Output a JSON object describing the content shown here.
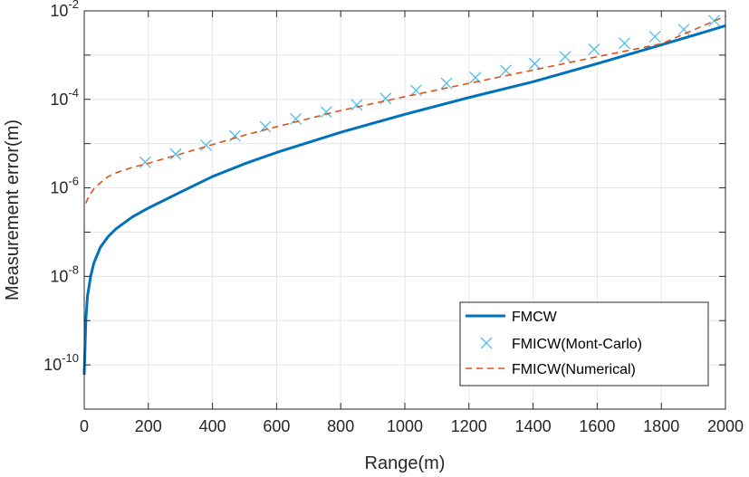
{
  "chart_data": {
    "type": "line",
    "xlabel": "Range(m)",
    "ylabel": "Measurement error(m)",
    "xlim": [
      0,
      2000
    ],
    "ylim_log10": [
      -11,
      -2
    ],
    "y_scale": "log",
    "grid": true,
    "legend_position": "bottom-right",
    "x_ticks": [
      {
        "value": 0,
        "label": "0"
      },
      {
        "value": 200,
        "label": "200"
      },
      {
        "value": 400,
        "label": "400"
      },
      {
        "value": 600,
        "label": "600"
      },
      {
        "value": 800,
        "label": "800"
      },
      {
        "value": 1000,
        "label": "1000"
      },
      {
        "value": 1200,
        "label": "1200"
      },
      {
        "value": 1400,
        "label": "1400"
      },
      {
        "value": 1600,
        "label": "1600"
      },
      {
        "value": 1800,
        "label": "1800"
      },
      {
        "value": 2000,
        "label": "2000"
      }
    ],
    "y_ticks": [
      {
        "exp": -10,
        "base": "10",
        "sup": "-10"
      },
      {
        "exp": -8,
        "base": "10",
        "sup": "-8"
      },
      {
        "exp": -6,
        "base": "10",
        "sup": "-6"
      },
      {
        "exp": -4,
        "base": "10",
        "sup": "-4"
      },
      {
        "exp": -2,
        "base": "10",
        "sup": "-2"
      }
    ],
    "series": [
      {
        "name": "FMCW",
        "style": "solid",
        "color": "#0072BD",
        "x": [
          0,
          5,
          10,
          20,
          30,
          50,
          75,
          100,
          150,
          200,
          300,
          400,
          500,
          600,
          800,
          1000,
          1200,
          1400,
          1600,
          1800,
          2000
        ],
        "y": [
          6e-11,
          1e-09,
          3.5e-09,
          1e-08,
          2e-08,
          4.5e-08,
          8e-08,
          1.2e-07,
          2.2e-07,
          3.5e-07,
          8e-07,
          1.8e-06,
          3.5e-06,
          6.3e-06,
          1.8e-05,
          4.6e-05,
          0.00011,
          0.00025,
          0.00064,
          0.0017,
          0.0046
        ]
      },
      {
        "name": "FMICW(Mont-Carlo)",
        "style": "marker-x",
        "color": "#4DBEEE",
        "x": [
          190,
          285,
          380,
          470,
          565,
          660,
          755,
          850,
          940,
          1035,
          1130,
          1220,
          1315,
          1405,
          1500,
          1590,
          1685,
          1780,
          1870,
          1965
        ],
        "y": [
          3.8e-06,
          5.8e-06,
          9.2e-06,
          1.5e-05,
          2.4e-05,
          3.6e-05,
          5.2e-05,
          7.5e-05,
          0.000105,
          0.00016,
          0.00023,
          0.00031,
          0.00045,
          0.00064,
          0.00092,
          0.00135,
          0.00185,
          0.0026,
          0.0038,
          0.006
        ]
      },
      {
        "name": "FMICW(Numerical)",
        "style": "dashed",
        "color": "#D95319",
        "x": [
          5,
          10,
          20,
          30,
          50,
          75,
          100,
          150,
          200,
          300,
          400,
          500,
          600,
          800,
          1000,
          1200,
          1400,
          1600,
          1800,
          2000
        ],
        "y": [
          4.5e-07,
          5.5e-07,
          7.5e-07,
          9.5e-07,
          1.3e-06,
          1.8e-06,
          2.2e-06,
          2.9e-06,
          3.6e-06,
          5.8e-06,
          9.5e-06,
          1.55e-05,
          2.4e-05,
          5.6e-05,
          0.000115,
          0.00023,
          0.00046,
          0.00092,
          0.0018,
          0.0076
        ]
      }
    ]
  }
}
